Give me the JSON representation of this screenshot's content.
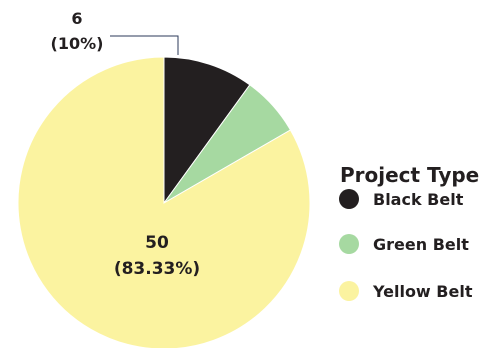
{
  "chart_data": {
    "type": "pie",
    "legend_title": "Project Type",
    "legend_position": "right",
    "slices": [
      {
        "name": "Black Belt",
        "value": 6,
        "percent_label": "(10%)",
        "value_label": "6",
        "color": "#231f20"
      },
      {
        "name": "Green Belt",
        "value": 4,
        "percent_label": "",
        "value_label": "",
        "color": "#a6d9a1"
      },
      {
        "name": "Yellow Belt",
        "value": 50,
        "percent_label": "(83.33%)",
        "value_label": "50",
        "color": "#fbf3a0"
      }
    ]
  }
}
